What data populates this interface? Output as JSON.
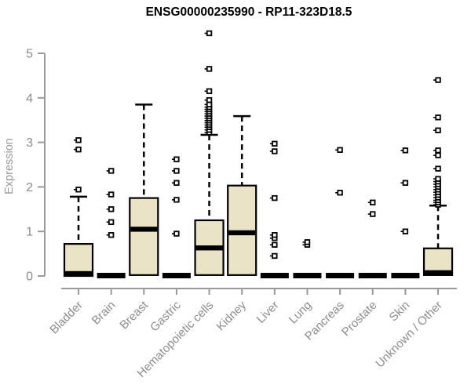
{
  "chart_data": {
    "type": "boxplot",
    "title": "ENSG00000235990 - RP11-323D18.5",
    "xlabel": "",
    "ylabel": "Expression",
    "ylim": [
      0,
      5
    ],
    "yticks": [
      0,
      1,
      2,
      3,
      4,
      5
    ],
    "grid": false,
    "legend": "none",
    "categories": [
      "Bladder",
      "Brain",
      "Breast",
      "Gastric",
      "Hematopoietic cells",
      "Kidney",
      "Liver",
      "Lung",
      "Pancreas",
      "Prostate",
      "Skin",
      "Unknown / Other"
    ],
    "series": [
      {
        "name": "Bladder",
        "q1": 0,
        "median": 0.03,
        "q3": 0.72,
        "whisker_low": 0,
        "whisker_high": 1.78,
        "outliers": [
          1.94,
          2.84,
          3.05
        ]
      },
      {
        "name": "Brain",
        "q1": 0,
        "median": 0.02,
        "q3": 0.04,
        "whisker_low": 0,
        "whisker_high": 0.04,
        "outliers": [
          0.92,
          1.21,
          1.5,
          1.83,
          2.36
        ]
      },
      {
        "name": "Breast",
        "q1": 0.02,
        "median": 1.05,
        "q3": 1.75,
        "whisker_low": 0,
        "whisker_high": 3.85,
        "outliers": []
      },
      {
        "name": "Gastric",
        "q1": 0,
        "median": 0.02,
        "q3": 0.04,
        "whisker_low": 0,
        "whisker_high": 0.04,
        "outliers": [
          0.95,
          1.71,
          2.09,
          2.36,
          2.62
        ]
      },
      {
        "name": "Hematopoietic cells",
        "q1": 0.02,
        "median": 0.63,
        "q3": 1.25,
        "whisker_low": 0,
        "whisker_high": 3.17,
        "outliers": [
          3.22,
          3.28,
          3.34,
          3.39,
          3.44,
          3.49,
          3.54,
          3.59,
          3.64,
          3.69,
          3.74,
          3.79,
          3.85,
          3.95,
          4.15,
          4.65,
          5.45
        ]
      },
      {
        "name": "Kidney",
        "q1": 0.02,
        "median": 0.97,
        "q3": 2.03,
        "whisker_low": 0,
        "whisker_high": 3.59,
        "outliers": []
      },
      {
        "name": "Liver",
        "q1": 0,
        "median": 0.02,
        "q3": 0.04,
        "whisker_low": 0,
        "whisker_high": 0.04,
        "outliers": [
          0.45,
          0.7,
          0.85,
          0.92,
          1.75,
          2.8,
          2.97
        ]
      },
      {
        "name": "Lung",
        "q1": 0,
        "median": 0.02,
        "q3": 0.04,
        "whisker_low": 0,
        "whisker_high": 0.04,
        "outliers": [
          0.7,
          0.76
        ]
      },
      {
        "name": "Pancreas",
        "q1": 0,
        "median": 0.02,
        "q3": 0.04,
        "whisker_low": 0,
        "whisker_high": 0.04,
        "outliers": [
          1.87,
          2.83
        ]
      },
      {
        "name": "Prostate",
        "q1": 0,
        "median": 0.02,
        "q3": 0.04,
        "whisker_low": 0,
        "whisker_high": 0.04,
        "outliers": [
          1.39,
          1.65
        ]
      },
      {
        "name": "Skin",
        "q1": 0,
        "median": 0.02,
        "q3": 0.04,
        "whisker_low": 0,
        "whisker_high": 0.04,
        "outliers": [
          1.0,
          2.09,
          2.82
        ]
      },
      {
        "name": "Unknown / Other",
        "q1": 0.02,
        "median": 0.04,
        "q3": 0.62,
        "whisker_low": 0,
        "whisker_high": 1.58,
        "outliers": [
          1.6,
          1.65,
          1.7,
          1.76,
          1.82,
          1.88,
          1.94,
          2.0,
          2.06,
          2.12,
          2.18,
          2.41,
          2.71,
          2.82,
          3.27,
          3.56,
          4.4
        ]
      }
    ]
  },
  "colors": {
    "box_fill": "#EAE3C6",
    "box_border": "#000000",
    "median": "#000000",
    "whisker": "#000000",
    "outlier_stroke": "#000000",
    "outlier_fill": "#ffffff",
    "axis_line": "#9a9a9a",
    "tick_label": "#8c8c8c",
    "axis_title": "#999999",
    "background": "#ffffff",
    "title_color": "#000000"
  }
}
